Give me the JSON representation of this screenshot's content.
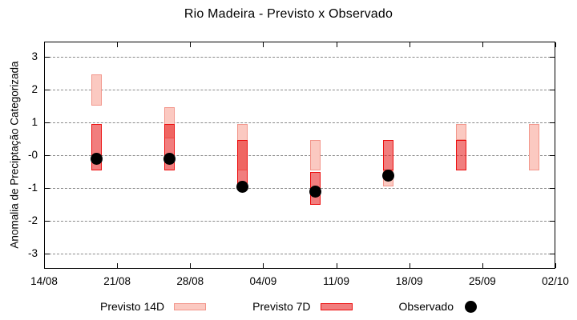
{
  "page": {
    "background": "#ffffff"
  },
  "colors": {
    "previsto_14d_fill": "#fbc9c1",
    "previsto_14d_border": "#f2968b",
    "previsto_7d_fill": "rgba(230,20,20,0.55)",
    "previsto_7d_border": "#ec0f0f",
    "observado": "#000000",
    "grid": "#8a8a8a",
    "axis": "#000000"
  },
  "chart_data": {
    "type": "range-bar",
    "title": "Rio Madeira - Previsto x Observado",
    "ylabel": "Anomalia de Preciptação Categorizada",
    "xlabel": "",
    "ylim": [
      -3.45,
      3.45
    ],
    "grid": "horizontal-dashed",
    "legend_position": "bottom",
    "yticks": [
      {
        "value": 3,
        "label": "3"
      },
      {
        "value": 2,
        "label": "2"
      },
      {
        "value": 1,
        "label": "1"
      },
      {
        "value": 0,
        "label": "-0"
      },
      {
        "value": -1,
        "label": "-1"
      },
      {
        "value": -2,
        "label": "-2"
      },
      {
        "value": -3,
        "label": "-3"
      }
    ],
    "x_axis": {
      "span_days": 49,
      "ticks": [
        {
          "day": 0,
          "label": "14/08"
        },
        {
          "day": 7,
          "label": "21/08"
        },
        {
          "day": 14,
          "label": "28/08"
        },
        {
          "day": 21,
          "label": "04/09"
        },
        {
          "day": 28,
          "label": "11/09"
        },
        {
          "day": 35,
          "label": "18/09"
        },
        {
          "day": 42,
          "label": "25/09"
        },
        {
          "day": 49,
          "label": "02/10"
        }
      ]
    },
    "groups": [
      {
        "date": "19/08",
        "day": 5,
        "previsto_14d": [
          1.5,
          2.45
        ],
        "previsto_7d": [
          -0.45,
          0.95
        ],
        "observado": -0.12
      },
      {
        "date": "26/08",
        "day": 12,
        "previsto_14d": [
          0.5,
          1.45
        ],
        "previsto_7d": [
          -0.45,
          0.95
        ],
        "observado": -0.12
      },
      {
        "date": "02/09",
        "day": 19,
        "previsto_14d": [
          -0.45,
          0.95
        ],
        "previsto_7d": [
          -0.95,
          0.45
        ],
        "observado": -0.97
      },
      {
        "date": "09/09",
        "day": 26,
        "previsto_14d": [
          -0.45,
          0.45
        ],
        "previsto_7d": [
          -1.5,
          -0.52
        ],
        "observado": -1.1
      },
      {
        "date": "16/09",
        "day": 33,
        "previsto_14d": [
          -0.95,
          -0.45
        ],
        "previsto_7d": [
          -0.45,
          0.45
        ],
        "observado": -0.63
      },
      {
        "date": "23/09",
        "day": 40,
        "previsto_14d": [
          0.45,
          0.95
        ],
        "previsto_7d": [
          -0.45,
          0.45
        ],
        "observado": null
      },
      {
        "date": "30/09",
        "day": 47,
        "previsto_14d": [
          -0.45,
          0.95
        ],
        "previsto_7d": null,
        "observado": null
      }
    ],
    "legend": [
      {
        "label": "Previsto 14D",
        "swatch": "box-14d"
      },
      {
        "label": "Previsto 7D",
        "swatch": "box-7d"
      },
      {
        "label": "Observado",
        "swatch": "dot"
      }
    ]
  }
}
